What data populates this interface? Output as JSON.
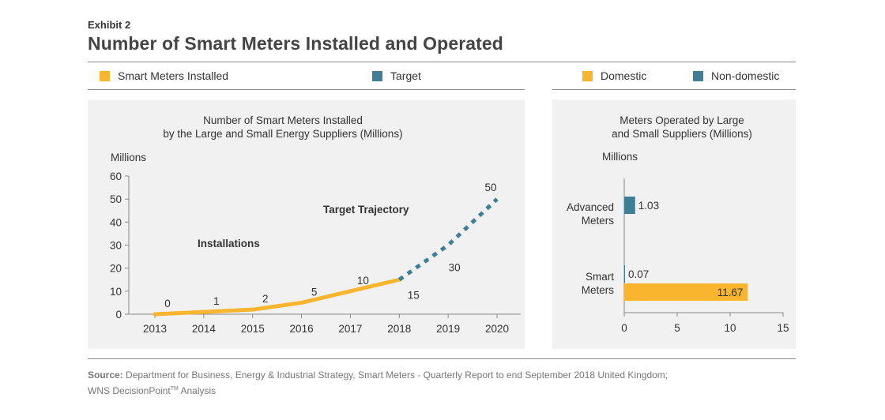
{
  "exhibit": "Exhibit 2",
  "title": "Number of Smart Meters Installed and Operated",
  "colors": {
    "installed": "#f9b52e",
    "target": "#3f7e97",
    "domestic": "#f9b52e",
    "non_domestic": "#3f7e97",
    "panel": "#f1f1f1"
  },
  "legend_left": [
    {
      "label": "Smart Meters Installed",
      "color": "#f9b52e"
    },
    {
      "label": "Target",
      "color": "#3f7e97"
    }
  ],
  "legend_right": [
    {
      "label": "Domestic",
      "color": "#f9b52e"
    },
    {
      "label": "Non-domestic",
      "color": "#3f7e97"
    }
  ],
  "chart_data": [
    {
      "type": "line",
      "title_lines": [
        "Number of Smart Meters Installed",
        "by the Large and Small Energy Suppliers (Millions)"
      ],
      "ylabel": "Millions",
      "ylim": [
        0,
        60
      ],
      "yticks": [
        "0",
        "10",
        "20",
        "30",
        "40",
        "50",
        "60"
      ],
      "x": [
        "2013",
        "2014",
        "2015",
        "2016",
        "2017",
        "2018",
        "2019",
        "2020"
      ],
      "series": [
        {
          "name": "Smart Meters Installed",
          "x": [
            "2013",
            "2014",
            "2015",
            "2016",
            "2017",
            "2018"
          ],
          "values": [
            0,
            1,
            2,
            5,
            10,
            15
          ],
          "labels": [
            "0",
            "1",
            "2",
            "5",
            "10",
            "15"
          ]
        },
        {
          "name": "Target",
          "x": [
            "2018",
            "2019",
            "2020"
          ],
          "values": [
            15,
            30,
            50
          ],
          "labels": [
            "15",
            "30",
            "50"
          ]
        }
      ],
      "annotations": [
        "Installations",
        "Target Trajectory"
      ],
      "grid": false
    },
    {
      "type": "bar",
      "orientation": "horizontal",
      "title_lines": [
        "Meters Operated by Large",
        "and Small Suppliers (Millions)"
      ],
      "ylabel": "Millions",
      "xlim": [
        0,
        15
      ],
      "xticks": [
        "0",
        "5",
        "10",
        "15"
      ],
      "categories": [
        {
          "label_lines": [
            "Advanced",
            "Meters"
          ],
          "bars": [
            {
              "series": "Non-domestic",
              "value": 1.03,
              "label": "1.03"
            }
          ]
        },
        {
          "label_lines": [
            "Smart",
            "Meters"
          ],
          "bars": [
            {
              "series": "Non-domestic",
              "value": 0.07,
              "label": "0.07"
            },
            {
              "series": "Domestic",
              "value": 11.67,
              "label": "11.67"
            }
          ]
        }
      ],
      "grid": false
    }
  ],
  "source_label": "Source:",
  "source_text": "Department for Business, Energy & Industrial Strategy, Smart Meters - Quarterly Report to end September 2018 United Kingdom;",
  "source_line2": "WNS DecisionPoint",
  "source_tm": "TM",
  "source_line2_end": " Analysis"
}
